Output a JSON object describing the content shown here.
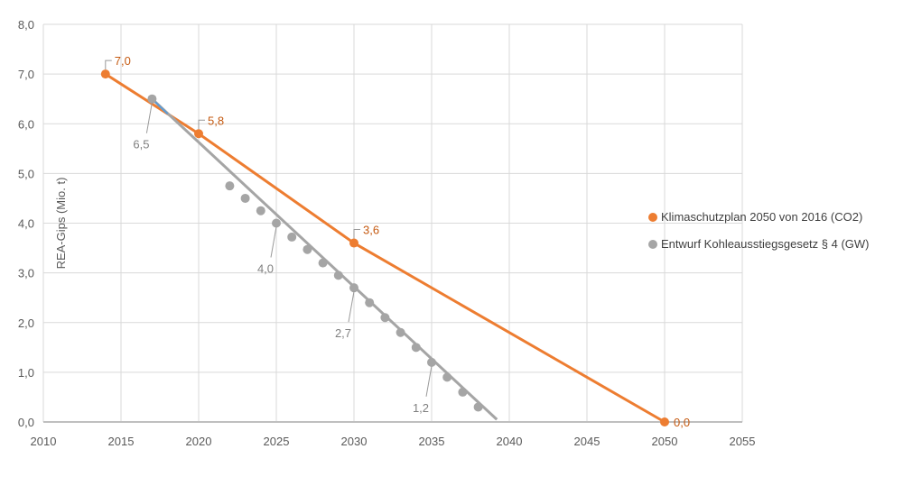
{
  "chart_data": {
    "type": "line",
    "title": "",
    "xlabel": "",
    "ylabel": "REA-Gips (Mio. t)",
    "xlim": [
      2010,
      2055
    ],
    "ylim": [
      0,
      8
    ],
    "xticks": [
      "2010",
      "2015",
      "2020",
      "2025",
      "2030",
      "2035",
      "2040",
      "2045",
      "2050",
      "2055"
    ],
    "yticks": [
      "0,0",
      "1,0",
      "2,0",
      "3,0",
      "4,0",
      "5,0",
      "6,0",
      "7,0",
      "8,0"
    ],
    "grid": true,
    "legend_position": "right",
    "series": [
      {
        "name": "Klimaschutzplan 2050 von 2016 (CO2)",
        "color": "#ED7D31",
        "x": [
          2014,
          2020,
          2030,
          2050
        ],
        "y": [
          7.0,
          5.8,
          3.6,
          0.0
        ],
        "labels": [
          "7,0",
          "5,8",
          "3,6",
          "0,0"
        ]
      },
      {
        "name": "Entwurf Kohleausstiegsgesetz § 4 (GW)",
        "color": "#A5A5A5",
        "x": [
          2017,
          2022,
          2023,
          2024,
          2025,
          2026,
          2027,
          2028,
          2029,
          2030,
          2031,
          2032,
          2033,
          2034,
          2035,
          2036,
          2037,
          2038
        ],
        "y": [
          6.5,
          4.75,
          4.5,
          4.25,
          4.0,
          3.72,
          3.47,
          3.2,
          2.95,
          2.7,
          2.4,
          2.1,
          1.8,
          1.5,
          1.2,
          0.9,
          0.6,
          0.3
        ],
        "trendline": {
          "x": [
            2017,
            2039.2
          ],
          "y": [
            6.5,
            0.05
          ]
        },
        "labeled_points": [
          {
            "x": 2017,
            "y": 6.5,
            "label": "6,5"
          },
          {
            "x": 2025,
            "y": 4.0,
            "label": "4,0"
          },
          {
            "x": 2030,
            "y": 2.7,
            "label": "2,7"
          },
          {
            "x": 2035,
            "y": 1.2,
            "label": "1,2"
          }
        ]
      }
    ]
  }
}
